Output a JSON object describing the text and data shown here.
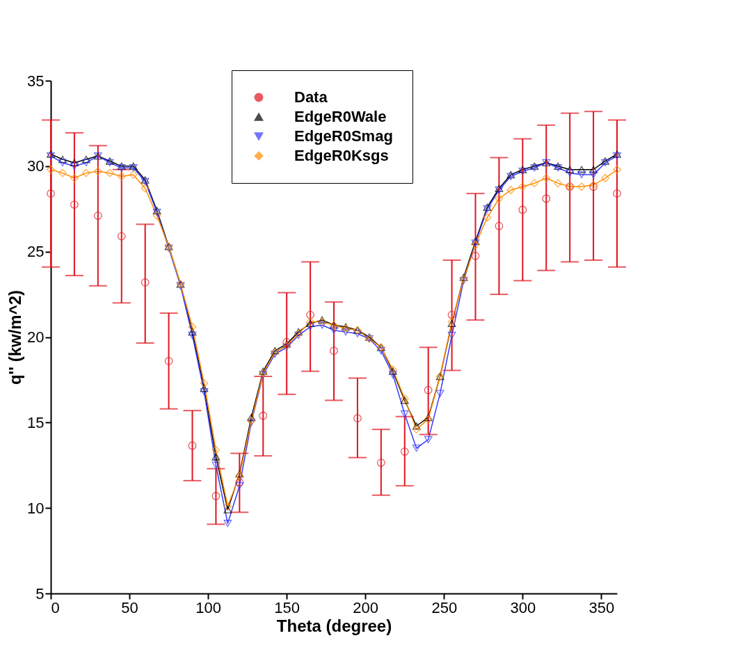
{
  "chart_data": {
    "type": "line",
    "xlabel": "Theta (degree)",
    "ylabel": "q'' (kw/m^2)",
    "xlim": [
      0,
      360
    ],
    "ylim": [
      5,
      35
    ],
    "xticks": [
      0,
      50,
      100,
      150,
      200,
      250,
      300,
      350
    ],
    "yticks": [
      5,
      10,
      15,
      20,
      25,
      30,
      35
    ],
    "grid": false,
    "legend": "top",
    "series": [
      {
        "name": "Data",
        "type": "scatter",
        "marker": "circle",
        "color": "#e0141e",
        "x": [
          0,
          15,
          30,
          45,
          60,
          75,
          90,
          105,
          120,
          135,
          150,
          165,
          180,
          195,
          210,
          225,
          240,
          255,
          270,
          285,
          300,
          315,
          330,
          345,
          360
        ],
        "values": [
          28.4,
          27.75,
          27.1,
          25.9,
          23.2,
          18.6,
          13.65,
          10.7,
          11.5,
          15.4,
          19.7,
          21.3,
          19.2,
          15.25,
          12.65,
          13.3,
          16.9,
          21.3,
          24.75,
          26.5,
          27.45,
          28.1,
          28.8,
          28.8,
          28.4
        ],
        "errors": [
          [
            24.1,
            32.7
          ],
          [
            23.6,
            31.95
          ],
          [
            23.0,
            31.2
          ],
          [
            22.0,
            29.8
          ],
          [
            19.65,
            26.6
          ],
          [
            15.8,
            21.4
          ],
          [
            11.6,
            15.7
          ],
          [
            9.05,
            12.3
          ],
          [
            9.75,
            13.2
          ],
          [
            13.05,
            17.7
          ],
          [
            16.65,
            22.6
          ],
          [
            18.0,
            24.4
          ],
          [
            16.3,
            22.05
          ],
          [
            12.95,
            17.6
          ],
          [
            10.75,
            14.6
          ],
          [
            11.3,
            15.35
          ],
          [
            14.3,
            19.4
          ],
          [
            18.05,
            24.5
          ],
          [
            21.0,
            28.4
          ],
          [
            22.5,
            30.5
          ],
          [
            23.3,
            31.6
          ],
          [
            23.9,
            32.4
          ],
          [
            24.4,
            33.1
          ],
          [
            24.5,
            33.2
          ],
          [
            24.1,
            32.7
          ]
        ]
      },
      {
        "name": "EdgeR0Wale",
        "type": "line",
        "marker": "triangle",
        "color": "#000000",
        "x": [
          0,
          7.5,
          15,
          22.5,
          30,
          37.5,
          45,
          52.5,
          60,
          67.5,
          75,
          82.5,
          90,
          97.5,
          105,
          112.5,
          120,
          127.5,
          135,
          142.5,
          150,
          157.5,
          165,
          172.5,
          180,
          187.5,
          195,
          202.5,
          210,
          217.5,
          225,
          232.5,
          240,
          247.5,
          255,
          262.5,
          270,
          277.5,
          285,
          292.5,
          300,
          307.5,
          315,
          322.5,
          330,
          337.5,
          345,
          352.5,
          360
        ],
        "values": [
          30.7,
          30.4,
          30.2,
          30.4,
          30.6,
          30.3,
          30.0,
          30.0,
          29.2,
          27.4,
          25.3,
          23.1,
          20.3,
          17.0,
          13.0,
          9.9,
          12.0,
          15.3,
          18.0,
          19.2,
          19.6,
          20.3,
          20.8,
          21.0,
          20.7,
          20.6,
          20.4,
          20.0,
          19.4,
          18.0,
          16.3,
          14.8,
          15.3,
          17.7,
          20.8,
          23.5,
          25.6,
          27.6,
          28.7,
          29.5,
          29.8,
          30.0,
          30.2,
          30.0,
          29.8,
          29.8,
          29.8,
          30.3,
          30.7
        ]
      },
      {
        "name": "EdgeR0Smag",
        "type": "line",
        "marker": "triangle-down",
        "color": "#3a3aff",
        "x": [
          0,
          7.5,
          15,
          22.5,
          30,
          37.5,
          45,
          52.5,
          60,
          67.5,
          75,
          82.5,
          90,
          97.5,
          105,
          112.5,
          120,
          127.5,
          135,
          142.5,
          150,
          157.5,
          165,
          172.5,
          180,
          187.5,
          195,
          202.5,
          210,
          217.5,
          225,
          232.5,
          240,
          247.5,
          255,
          262.5,
          270,
          277.5,
          285,
          292.5,
          300,
          307.5,
          315,
          322.5,
          330,
          337.5,
          345,
          352.5,
          360
        ],
        "values": [
          30.6,
          30.2,
          30.0,
          30.2,
          30.6,
          30.2,
          29.9,
          29.9,
          29.1,
          27.3,
          25.2,
          23.0,
          20.1,
          16.8,
          12.5,
          9.1,
          11.3,
          15.0,
          17.8,
          19.0,
          19.4,
          20.1,
          20.6,
          20.7,
          20.4,
          20.3,
          20.2,
          19.9,
          19.2,
          17.8,
          15.5,
          13.5,
          14.0,
          16.7,
          20.1,
          23.3,
          25.5,
          27.5,
          28.6,
          29.4,
          29.7,
          29.9,
          30.2,
          29.9,
          29.6,
          29.5,
          29.5,
          30.2,
          30.6
        ]
      },
      {
        "name": "EdgeR0Ksgs",
        "type": "line",
        "marker": "diamond",
        "color": "#ff8c00",
        "x": [
          0,
          7.5,
          15,
          22.5,
          30,
          37.5,
          45,
          52.5,
          60,
          67.5,
          75,
          82.5,
          90,
          97.5,
          105,
          112.5,
          120,
          127.5,
          135,
          142.5,
          150,
          157.5,
          165,
          172.5,
          180,
          187.5,
          195,
          202.5,
          210,
          217.5,
          225,
          232.5,
          240,
          247.5,
          255,
          262.5,
          270,
          277.5,
          285,
          292.5,
          300,
          307.5,
          315,
          322.5,
          330,
          337.5,
          345,
          352.5,
          360
        ],
        "values": [
          29.8,
          29.6,
          29.3,
          29.6,
          29.7,
          29.6,
          29.4,
          29.5,
          28.7,
          27.1,
          25.3,
          23.1,
          20.6,
          17.3,
          13.4,
          10.1,
          11.9,
          15.1,
          17.9,
          19.1,
          19.5,
          20.2,
          20.9,
          20.9,
          20.7,
          20.5,
          20.4,
          19.9,
          19.4,
          18.1,
          16.4,
          14.6,
          15.2,
          17.7,
          20.9,
          23.4,
          25.4,
          27.0,
          28.1,
          28.6,
          28.8,
          29.0,
          29.3,
          29.0,
          28.8,
          28.8,
          28.9,
          29.3,
          29.8
        ]
      }
    ]
  }
}
